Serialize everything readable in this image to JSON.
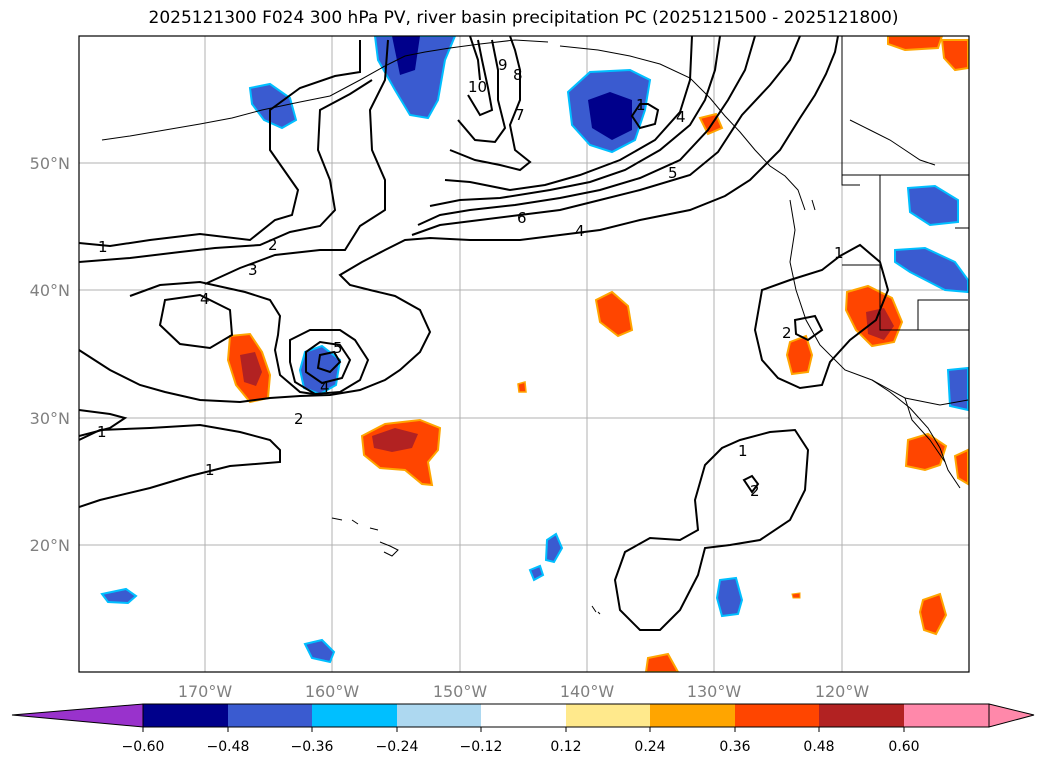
{
  "title": "2025121300 F024 300 hPa PV, river basin precipitation PC (2025121500 - 2025121800)",
  "map": {
    "lat_labels": [
      "50°N",
      "40°N",
      "30°N",
      "20°N"
    ],
    "lon_labels": [
      "170°W",
      "160°W",
      "150°W",
      "140°W",
      "130°W",
      "120°W"
    ],
    "contour_labels": [
      "1",
      "2",
      "3",
      "4",
      "5",
      "4",
      "2",
      "1",
      "1",
      "4",
      "6",
      "7",
      "8",
      "9",
      "10",
      "5",
      "4",
      "1",
      "2",
      "1",
      "2",
      "1",
      "1"
    ]
  },
  "colorbar": {
    "ticks": [
      "−0.60",
      "−0.48",
      "−0.36",
      "−0.24",
      "−0.12",
      "0.12",
      "0.24",
      "0.36",
      "0.48",
      "0.60"
    ],
    "colors": [
      "#9932cc",
      "#00008b",
      "#3a5bd0",
      "#00bfff",
      "#add8f0",
      "#ffffff",
      "#ffe98c",
      "#ffa500",
      "#ff4500",
      "#b22222",
      "#ff88aa"
    ]
  }
}
